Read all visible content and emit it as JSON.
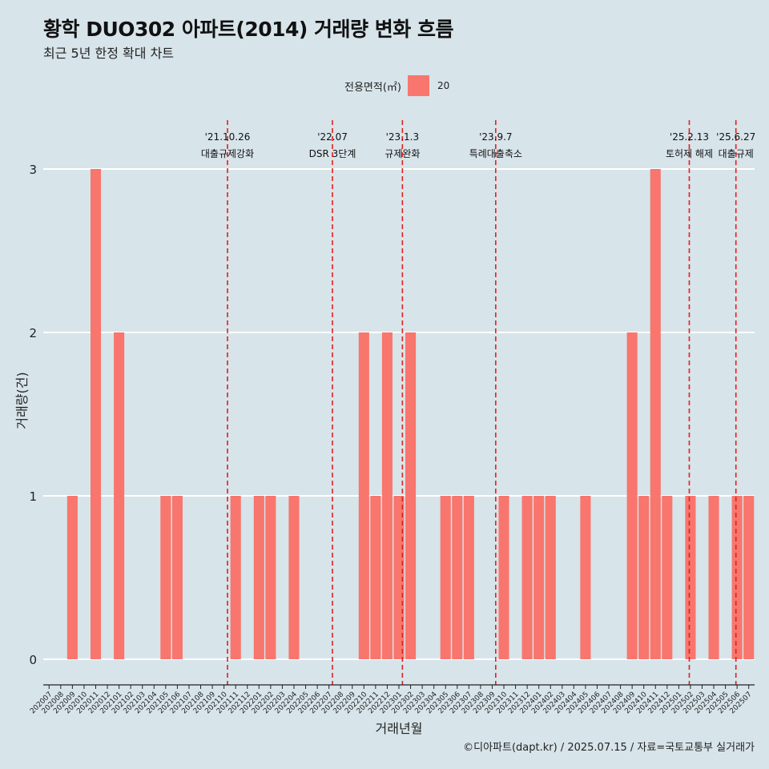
{
  "chart_data": {
    "type": "bar",
    "title": "황학 DUO302 아파트(2014) 거래량 변화 흐름",
    "subtitle": "최근 5년 한정 확대 차트",
    "xlabel": "거래년월",
    "ylabel": "거래량(건)",
    "caption": "©디아파트(dapt.kr) / 2025.07.15 / 자료=국토교통부 실거래가",
    "legend": {
      "title": "전용면적(㎡)",
      "entries": [
        "20"
      ],
      "color": "#f8766d",
      "position": "top"
    },
    "ylim": [
      -0.15,
      3.3
    ],
    "yticks": [
      0,
      1,
      2,
      3
    ],
    "categories": [
      "202007",
      "202008",
      "202009",
      "202010",
      "202011",
      "202012",
      "202101",
      "202102",
      "202103",
      "202104",
      "202105",
      "202106",
      "202107",
      "202108",
      "202109",
      "202110",
      "202111",
      "202112",
      "202201",
      "202202",
      "202203",
      "202204",
      "202205",
      "202206",
      "202207",
      "202208",
      "202209",
      "202210",
      "202211",
      "202212",
      "202301",
      "202302",
      "202303",
      "202304",
      "202305",
      "202306",
      "202307",
      "202308",
      "202309",
      "202310",
      "202311",
      "202312",
      "202401",
      "202402",
      "202403",
      "202404",
      "202405",
      "202406",
      "202407",
      "202408",
      "202409",
      "202410",
      "202411",
      "202412",
      "202501",
      "202502",
      "202503",
      "202504",
      "202505",
      "202506",
      "202507"
    ],
    "values": [
      0,
      0,
      1,
      0,
      3,
      0,
      2,
      0,
      0,
      0,
      1,
      1,
      0,
      0,
      0,
      0,
      1,
      0,
      1,
      1,
      0,
      1,
      0,
      0,
      0,
      0,
      0,
      2,
      1,
      2,
      1,
      2,
      0,
      0,
      1,
      1,
      1,
      0,
      0,
      1,
      0,
      1,
      1,
      1,
      0,
      0,
      1,
      0,
      0,
      0,
      2,
      1,
      3,
      1,
      0,
      1,
      0,
      1,
      0,
      1,
      1
    ],
    "series_name": "20",
    "bar_color": "#f8766d",
    "events": [
      {
        "date": "'21.10.26",
        "label": "대출규제강화",
        "pos": 15.8
      },
      {
        "date": "'22.07",
        "label": "DSR 3단계",
        "pos": 24.8
      },
      {
        "date": "'23.1.3",
        "label": "규제완화",
        "pos": 30.8
      },
      {
        "date": "'23.9.7",
        "label": "특례대출축소",
        "pos": 38.8
      },
      {
        "date": "'25.2.13",
        "label": "토허제 해제",
        "pos": 55.4
      },
      {
        "date": "'25.6.27",
        "label": "대출규제",
        "pos": 59.4
      }
    ],
    "event_color": "#e02020"
  }
}
